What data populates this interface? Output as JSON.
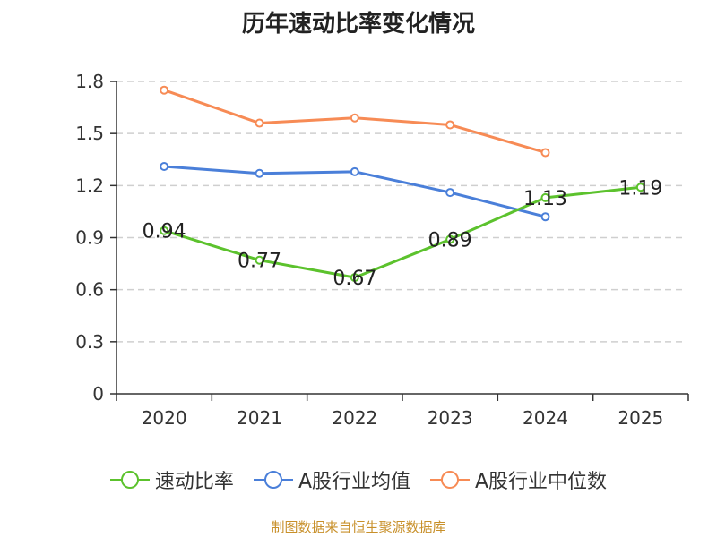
{
  "chart_data": {
    "type": "line",
    "title": "历年速动比率变化情况",
    "categories": [
      "2020",
      "2021",
      "2022",
      "2023",
      "2024",
      "2025"
    ],
    "ylim": [
      0,
      1.8
    ],
    "yticks": [
      "0",
      "0.3",
      "0.6",
      "0.9",
      "1.2",
      "1.5",
      "1.8"
    ],
    "grid": true,
    "legend_position": "bottom",
    "series": [
      {
        "name": "速动比率",
        "color": "#5cc22d",
        "values": [
          0.94,
          0.77,
          0.67,
          0.89,
          1.13,
          1.19
        ],
        "labels": [
          "0.94",
          "0.77",
          "0.67",
          "0.89",
          "1.13",
          "1.19"
        ],
        "show_labels": true
      },
      {
        "name": "A股行业均值",
        "color": "#4a7fd9",
        "values": [
          1.31,
          1.27,
          1.28,
          1.16,
          1.02,
          null
        ],
        "show_labels": false
      },
      {
        "name": "A股行业中位数",
        "color": "#f78b55",
        "values": [
          1.75,
          1.56,
          1.59,
          1.55,
          1.39,
          null
        ],
        "show_labels": false
      }
    ]
  },
  "source_text": "制图数据来自恒生聚源数据库"
}
